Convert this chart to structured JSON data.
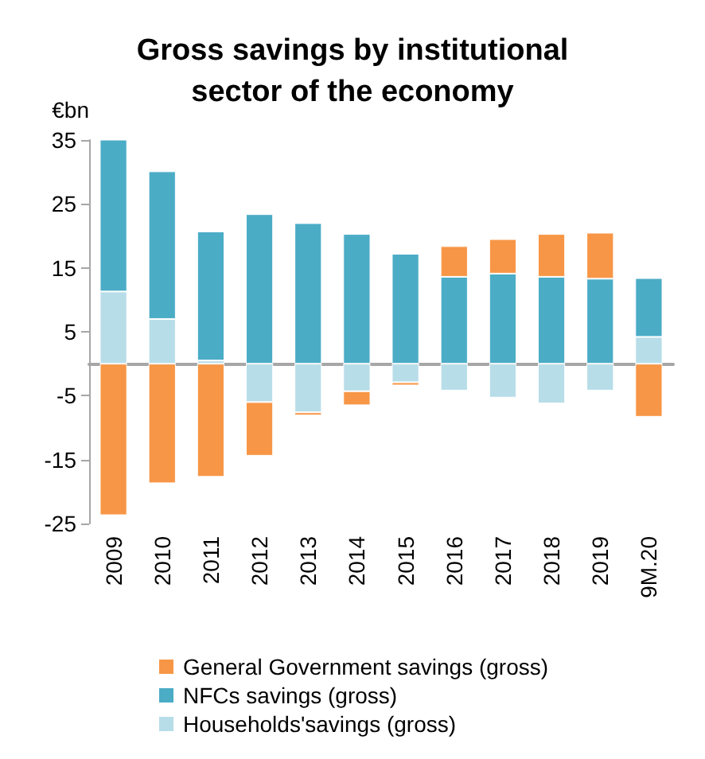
{
  "chart_data": {
    "type": "bar",
    "title": "Gross savings by institutional\nsector of the economy",
    "ylabel": "€bn",
    "categories": [
      "2009",
      "2010",
      "2011",
      "2012",
      "2013",
      "2014",
      "2015",
      "2016",
      "2017",
      "2018",
      "2019",
      "9M.20"
    ],
    "stacked": true,
    "ylim": [
      -25,
      35
    ],
    "yticks": [
      35,
      25,
      15,
      5,
      -5,
      -15,
      -25
    ],
    "grid": false,
    "legend": "bottom",
    "series": [
      {
        "name": "Households'savings (gross)",
        "color": "#b7dde8",
        "values": [
          11.3,
          7.0,
          0.5,
          -6.0,
          -7.6,
          -4.3,
          -2.9,
          -4.2,
          -5.3,
          -6.2,
          -4.2,
          4.2
        ]
      },
      {
        "name": "NFCs savings (gross)",
        "color": "#4bacc6",
        "values": [
          23.9,
          23.1,
          20.2,
          23.4,
          22.0,
          20.3,
          17.2,
          13.6,
          14.1,
          13.6,
          13.3,
          9.2
        ]
      },
      {
        "name": "General Government savings (gross)",
        "color": "#f79646",
        "values": [
          -23.7,
          -18.7,
          -17.7,
          -8.4,
          -0.5,
          -2.2,
          -0.5,
          4.8,
          5.4,
          6.7,
          7.2,
          -8.3
        ]
      }
    ]
  }
}
